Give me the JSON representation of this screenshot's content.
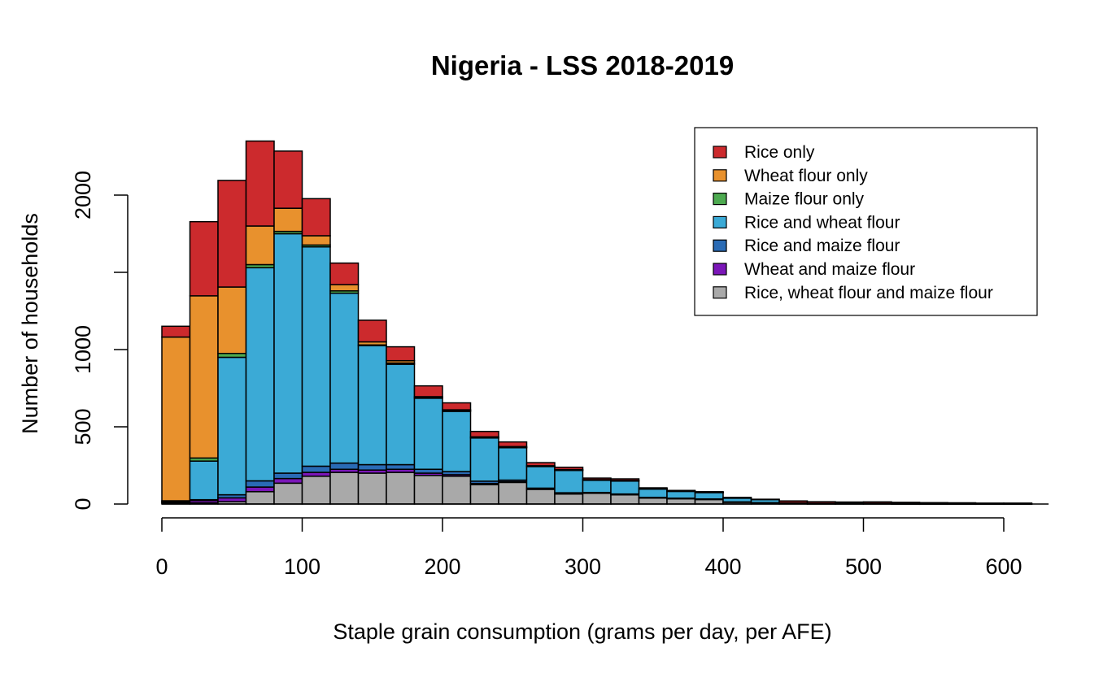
{
  "chart_data": {
    "type": "bar",
    "stacked": true,
    "title": "Nigeria - LSS 2018-2019",
    "xlabel": "Staple grain consumption (grams per day, per AFE)",
    "ylabel": "Number of households",
    "xlim": [
      0,
      625
    ],
    "ylim": [
      0,
      2350
    ],
    "bin_width": 20,
    "x_ticks": [
      0,
      100,
      200,
      300,
      400,
      500,
      600
    ],
    "y_ticks": [
      0,
      500,
      1000,
      1500,
      2000
    ],
    "y_tick_labels": [
      "0",
      "500",
      "1000",
      "",
      "2000"
    ],
    "legend_position": "top-right",
    "bins": [
      [
        0,
        20
      ],
      [
        20,
        40
      ],
      [
        40,
        60
      ],
      [
        60,
        80
      ],
      [
        80,
        100
      ],
      [
        100,
        120
      ],
      [
        120,
        140
      ],
      [
        140,
        160
      ],
      [
        160,
        180
      ],
      [
        180,
        200
      ],
      [
        200,
        220
      ],
      [
        220,
        240
      ],
      [
        240,
        260
      ],
      [
        260,
        280
      ],
      [
        280,
        300
      ],
      [
        300,
        320
      ],
      [
        320,
        340
      ],
      [
        340,
        360
      ],
      [
        360,
        380
      ],
      [
        380,
        400
      ],
      [
        400,
        420
      ],
      [
        420,
        440
      ],
      [
        440,
        460
      ],
      [
        460,
        480
      ],
      [
        480,
        500
      ],
      [
        500,
        520
      ],
      [
        520,
        540
      ],
      [
        540,
        560
      ],
      [
        560,
        580
      ],
      [
        580,
        600
      ],
      [
        600,
        620
      ]
    ],
    "series": [
      {
        "name": "Rice, wheat flour and maize flour",
        "color": "#A9A9A9",
        "values": [
          5,
          8,
          15,
          80,
          135,
          180,
          205,
          200,
          205,
          185,
          180,
          125,
          140,
          95,
          65,
          70,
          60,
          40,
          35,
          30,
          12,
          8,
          3,
          2,
          2,
          2,
          1,
          1,
          1,
          1,
          1
        ]
      },
      {
        "name": "Wheat and maize flour",
        "color": "#7B16B8",
        "values": [
          5,
          15,
          25,
          30,
          30,
          25,
          20,
          20,
          20,
          15,
          10,
          8,
          5,
          3,
          3,
          2,
          2,
          1,
          1,
          1,
          1,
          0,
          0,
          0,
          0,
          0,
          0,
          0,
          0,
          0,
          0
        ]
      },
      {
        "name": "Rice and maize flour",
        "color": "#2A6BB5",
        "values": [
          3,
          5,
          20,
          40,
          35,
          40,
          40,
          35,
          30,
          25,
          20,
          15,
          10,
          5,
          5,
          3,
          3,
          2,
          2,
          2,
          1,
          1,
          0,
          0,
          0,
          0,
          0,
          0,
          0,
          0,
          0
        ]
      },
      {
        "name": "Rice and wheat flour",
        "color": "#3BAAD6",
        "values": [
          5,
          250,
          890,
          1380,
          1550,
          1420,
          1100,
          770,
          650,
          460,
          390,
          280,
          210,
          140,
          145,
          80,
          85,
          55,
          45,
          42,
          25,
          20,
          5,
          3,
          3,
          3,
          2,
          2,
          2,
          1,
          1
        ]
      },
      {
        "name": "Maize flour only",
        "color": "#4DAA50",
        "values": [
          3,
          20,
          25,
          20,
          15,
          12,
          15,
          5,
          8,
          5,
          5,
          2,
          2,
          2,
          2,
          1,
          1,
          1,
          1,
          1,
          0,
          0,
          0,
          0,
          0,
          0,
          0,
          0,
          0,
          0,
          0
        ]
      },
      {
        "name": "Wheat flour only",
        "color": "#E8912D",
        "values": [
          1060,
          1050,
          430,
          250,
          150,
          60,
          40,
          20,
          15,
          5,
          5,
          5,
          5,
          3,
          3,
          2,
          2,
          1,
          1,
          1,
          1,
          0,
          0,
          0,
          0,
          0,
          0,
          0,
          0,
          0,
          0
        ]
      },
      {
        "name": "Rice only",
        "color": "#CC2A2D",
        "values": [
          70,
          480,
          690,
          550,
          370,
          240,
          140,
          140,
          90,
          70,
          45,
          35,
          30,
          20,
          15,
          10,
          10,
          5,
          3,
          3,
          3,
          2,
          12,
          10,
          8,
          9,
          8,
          6,
          5,
          4,
          4
        ]
      }
    ],
    "legend": [
      "Rice only",
      "Wheat flour only",
      "Maize flour only",
      "Rice and wheat flour",
      "Rice and maize flour",
      "Wheat and maize flour",
      "Rice, wheat flour and maize flour"
    ]
  }
}
